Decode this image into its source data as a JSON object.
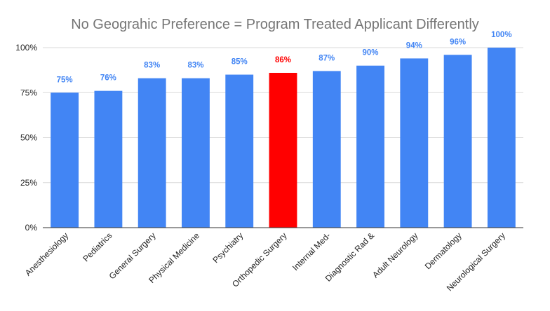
{
  "chart_data": {
    "type": "bar",
    "title": "No Geograhic Preference = Program Treated Applicant Differently",
    "xlabel": "",
    "ylabel": "",
    "categories": [
      "Anesthesiology",
      "Pediatrics",
      "General Surgery",
      "Physical Medicine",
      "Psychiatry",
      "Orthopedic Surgery",
      "Internal Med-",
      "Diagnostic Rad &",
      "Adult Neurology",
      "Dermatology",
      "Neurological Surgery"
    ],
    "values": [
      75,
      76,
      83,
      83,
      85,
      86,
      87,
      90,
      94,
      96,
      100
    ],
    "data_labels": [
      "75%",
      "76%",
      "83%",
      "83%",
      "85%",
      "86%",
      "87%",
      "90%",
      "94%",
      "96%",
      "100%"
    ],
    "ylim": [
      0,
      100
    ],
    "yticks": [
      0,
      25,
      50,
      75,
      100
    ],
    "ytick_labels": [
      "0%",
      "25%",
      "50%",
      "75%",
      "100%"
    ],
    "grid": true,
    "legend": "none",
    "colors": {
      "bar": "#4285f4",
      "highlight_bar": "#ff0000",
      "label": "#4285f4",
      "highlight_label": "#ff0000"
    },
    "highlight_index": 5
  }
}
